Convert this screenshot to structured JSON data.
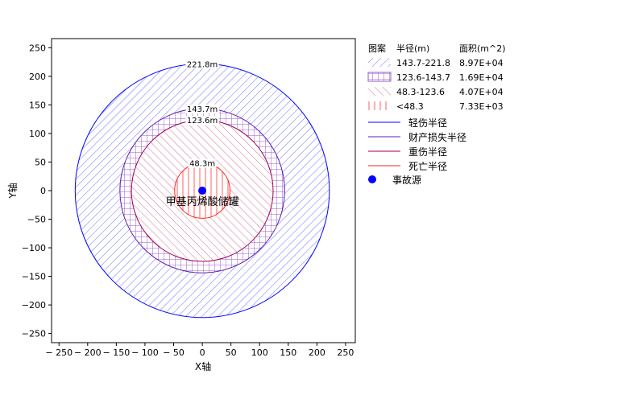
{
  "chart_data": {
    "type": "scatter",
    "title": "",
    "xlabel": "X轴",
    "ylabel": "Y轴",
    "xlim": [
      -263,
      267
    ],
    "ylim": [
      -266,
      266
    ],
    "xticks": [
      -250,
      -200,
      -150,
      -100,
      -50,
      0,
      50,
      100,
      150,
      200,
      250
    ],
    "yticks": [
      -250,
      -200,
      -150,
      -100,
      -50,
      0,
      50,
      100,
      150,
      200,
      250
    ],
    "source": {
      "name": "事故源",
      "x": 0,
      "y": 0,
      "label": "甲基丙烯酸储罐",
      "color": "#0000ff"
    },
    "circles": [
      {
        "name": "轻伤半径",
        "radius": 221.8,
        "label": "221.8m",
        "color": "#0000ff",
        "fill": "#7070ff",
        "pattern": "diag"
      },
      {
        "name": "财产损失半径",
        "radius": 143.7,
        "label": "143.7m",
        "color": "#5a20b0",
        "fill": "#9a5ad0",
        "pattern": "grid"
      },
      {
        "name": "重伤半径",
        "radius": 123.6,
        "label": "123.6m",
        "color": "#a00050",
        "fill": "#d07090",
        "pattern": "back"
      },
      {
        "name": "死亡半径",
        "radius": 48.3,
        "label": "48.3m",
        "color": "#ff2020",
        "fill": "#ff5050",
        "pattern": "vert"
      }
    ],
    "legend": {
      "placement": "right",
      "headers": [
        "图案",
        "半径(m)",
        "面积(m^2)"
      ],
      "areas": [
        {
          "range": "143.7-221.8",
          "area": "8.97E+04"
        },
        {
          "range": "123.6-143.7",
          "area": "1.69E+04"
        },
        {
          "range": "48.3-123.6",
          "area": "4.07E+04"
        },
        {
          "range": "<48.3",
          "area": "7.33E+03"
        }
      ],
      "lines": [
        "轻伤半径",
        "财产损失半径",
        "重伤半径",
        "死亡半径"
      ],
      "source_label": "事故源"
    }
  }
}
